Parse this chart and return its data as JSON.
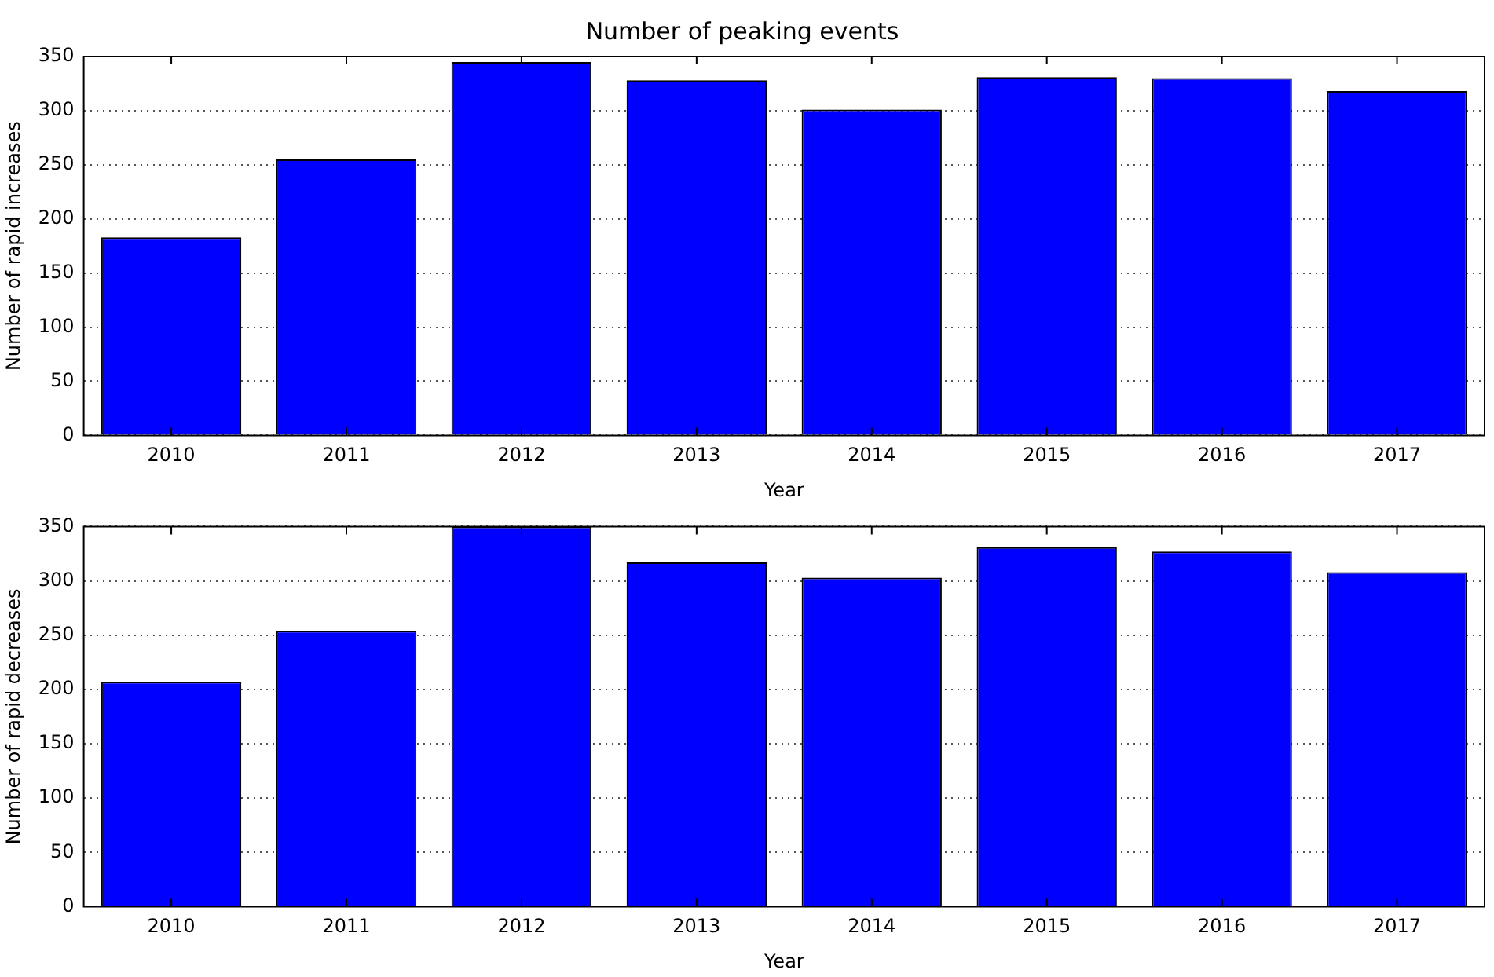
{
  "chart_data": [
    {
      "type": "bar",
      "title": "Number of peaking events",
      "xlabel": "Year",
      "ylabel": "Number of rapid increases",
      "categories": [
        "2010",
        "2011",
        "2012",
        "2013",
        "2014",
        "2015",
        "2016",
        "2017"
      ],
      "values": [
        183,
        255,
        345,
        328,
        301,
        331,
        330,
        318
      ],
      "color": "#0000ff",
      "ylim": [
        0,
        350
      ],
      "yticks": [
        0,
        50,
        100,
        150,
        200,
        250,
        300,
        350
      ],
      "grid": "y"
    },
    {
      "type": "bar",
      "xlabel": "Year",
      "ylabel": "Number of rapid decreases",
      "categories": [
        "2010",
        "2011",
        "2012",
        "2013",
        "2014",
        "2015",
        "2016",
        "2017"
      ],
      "values": [
        207,
        254,
        350,
        317,
        303,
        331,
        327,
        308
      ],
      "color": "#0000ff",
      "ylim": [
        0,
        350
      ],
      "yticks": [
        0,
        50,
        100,
        150,
        200,
        250,
        300,
        350
      ],
      "grid": "y"
    }
  ]
}
